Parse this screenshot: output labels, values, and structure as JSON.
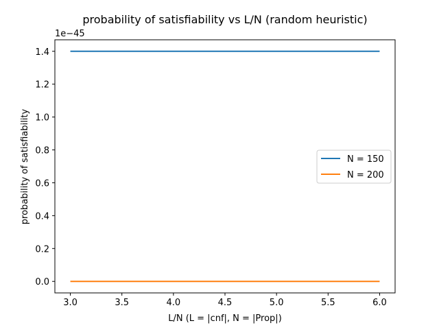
{
  "chart_data": {
    "type": "line",
    "title": "probability of satisfiability vs L/N (random heuristic)",
    "xlabel": "L/N (L = |cnf|, N = |Prop|)",
    "ylabel": "probability of satisfiability",
    "offset_text": "1e−45",
    "xlim": [
      2.85,
      6.15
    ],
    "ylim": [
      -0.07,
      1.47
    ],
    "x_ticks": [
      3.0,
      3.5,
      4.0,
      4.5,
      5.0,
      5.5,
      6.0
    ],
    "x_tick_labels": [
      "3.0",
      "3.5",
      "4.0",
      "4.5",
      "5.0",
      "5.5",
      "6.0"
    ],
    "y_ticks": [
      0.0,
      0.2,
      0.4,
      0.6,
      0.8,
      1.0,
      1.2,
      1.4
    ],
    "y_tick_labels": [
      "0.0",
      "0.2",
      "0.4",
      "0.6",
      "0.8",
      "1.0",
      "1.2",
      "1.4"
    ],
    "grid": false,
    "legend_position": "center-right",
    "series": [
      {
        "name": "N = 150",
        "color": "#1f77b4",
        "x": [
          3.0,
          6.0
        ],
        "y": [
          1.4,
          1.4
        ]
      },
      {
        "name": "N = 200",
        "color": "#ff7f0e",
        "x": [
          3.0,
          6.0
        ],
        "y": [
          0.0,
          0.0
        ]
      }
    ]
  }
}
